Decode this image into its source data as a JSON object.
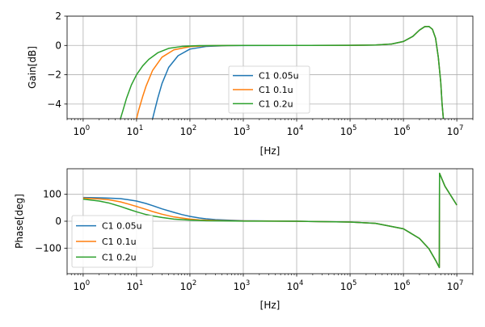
{
  "chart_data": [
    {
      "type": "line",
      "xscale": "log",
      "xlim": [
        0.5,
        20000000
      ],
      "ylim": [
        -5,
        2
      ],
      "ylabel": "Gain[dB]",
      "xlabel": "[Hz]",
      "grid": true,
      "legend_position": "center",
      "xticks": [
        {
          "value": 1,
          "base": "10",
          "exp": "0"
        },
        {
          "value": 10,
          "base": "10",
          "exp": "1"
        },
        {
          "value": 100,
          "base": "10",
          "exp": "2"
        },
        {
          "value": 1000,
          "base": "10",
          "exp": "3"
        },
        {
          "value": 10000,
          "base": "10",
          "exp": "4"
        },
        {
          "value": 100000,
          "base": "10",
          "exp": "5"
        },
        {
          "value": 1000000,
          "base": "10",
          "exp": "6"
        },
        {
          "value": 10000000,
          "base": "10",
          "exp": "7"
        }
      ],
      "yticks": [
        {
          "value": 2,
          "label": "2"
        },
        {
          "value": 0,
          "label": "0"
        },
        {
          "value": -2,
          "label": "−2"
        },
        {
          "value": -4,
          "label": "−4"
        }
      ],
      "series": [
        {
          "name": "C1 0.05u",
          "color": "#1f77b4",
          "x": [
            20,
            22,
            25,
            30,
            40,
            60,
            100,
            200,
            500,
            1000,
            10000,
            100000,
            300000,
            600000,
            1000000,
            1500000,
            2000000,
            2500000,
            3000000,
            3500000,
            4000000,
            4500000,
            5000000,
            5300000,
            5600000
          ],
          "y": [
            -5,
            -4.4,
            -3.6,
            -2.6,
            -1.5,
            -0.7,
            -0.25,
            -0.07,
            -0.012,
            -0.003,
            0,
            0.01,
            0.03,
            0.1,
            0.27,
            0.62,
            1.05,
            1.28,
            1.3,
            1.1,
            0.5,
            -0.8,
            -2.5,
            -4,
            -5
          ]
        },
        {
          "name": "C1 0.1u",
          "color": "#ff7f0e",
          "x": [
            10,
            11,
            13,
            15,
            20,
            30,
            50,
            100,
            200,
            500,
            1000,
            10000,
            100000,
            300000,
            600000,
            1000000,
            1500000,
            2000000,
            2500000,
            3000000,
            3500000,
            4000000,
            4500000,
            5000000,
            5300000,
            5600000
          ],
          "y": [
            -5,
            -4.4,
            -3.5,
            -2.8,
            -1.7,
            -0.8,
            -0.3,
            -0.08,
            -0.02,
            -0.003,
            0,
            0,
            0.01,
            0.03,
            0.1,
            0.27,
            0.62,
            1.05,
            1.28,
            1.3,
            1.1,
            0.5,
            -0.8,
            -2.5,
            -4,
            -5
          ]
        },
        {
          "name": "C1 0.2u",
          "color": "#2ca02c",
          "x": [
            5,
            5.5,
            6.5,
            8,
            10,
            13,
            17,
            25,
            40,
            70,
            150,
            400,
            1000,
            10000,
            100000,
            300000,
            600000,
            1000000,
            1500000,
            2000000,
            2500000,
            3000000,
            3500000,
            4000000,
            4500000,
            5000000,
            5300000,
            5600000
          ],
          "y": [
            -5,
            -4.5,
            -3.6,
            -2.7,
            -2,
            -1.4,
            -0.95,
            -0.5,
            -0.2,
            -0.07,
            -0.015,
            -0.002,
            0,
            0,
            0.01,
            0.03,
            0.1,
            0.27,
            0.62,
            1.05,
            1.28,
            1.3,
            1.1,
            0.5,
            -0.8,
            -2.5,
            -4,
            -5
          ]
        }
      ]
    },
    {
      "type": "line",
      "xscale": "log",
      "xlim": [
        0.5,
        20000000
      ],
      "ylim": [
        -195,
        195
      ],
      "ylabel": "Phase[deg]",
      "xlabel": "[Hz]",
      "grid": true,
      "legend_position": "lower-left",
      "xticks": [
        {
          "value": 1,
          "base": "10",
          "exp": "0"
        },
        {
          "value": 10,
          "base": "10",
          "exp": "1"
        },
        {
          "value": 100,
          "base": "10",
          "exp": "2"
        },
        {
          "value": 1000,
          "base": "10",
          "exp": "3"
        },
        {
          "value": 10000,
          "base": "10",
          "exp": "4"
        },
        {
          "value": 100000,
          "base": "10",
          "exp": "5"
        },
        {
          "value": 1000000,
          "base": "10",
          "exp": "6"
        },
        {
          "value": 10000000,
          "base": "10",
          "exp": "7"
        }
      ],
      "yticks": [
        {
          "value": 100,
          "label": "100"
        },
        {
          "value": 0,
          "label": "0"
        },
        {
          "value": -100,
          "label": "−100"
        }
      ],
      "series": [
        {
          "name": "C1 0.05u",
          "color": "#1f77b4",
          "x": [
            1,
            2,
            3,
            5,
            7,
            10,
            15,
            20,
            30,
            50,
            70,
            100,
            150,
            200,
            300,
            500,
            1000,
            10000,
            100000,
            300000,
            1000000,
            2000000,
            3000000,
            4000000,
            4700000,
            4750000,
            6000000,
            10000000
          ],
          "y": [
            88,
            87,
            86,
            84,
            80,
            75,
            66,
            58,
            46,
            33,
            25,
            18,
            12,
            9,
            6,
            4,
            2,
            0,
            -3,
            -8,
            -28,
            -64,
            -102,
            -145,
            -172,
            178,
            130,
            60
          ]
        },
        {
          "name": "C1 0.1u",
          "color": "#ff7f0e",
          "x": [
            1,
            2,
            3,
            5,
            7,
            10,
            15,
            20,
            30,
            50,
            70,
            100,
            150,
            200,
            300,
            500,
            1000,
            10000,
            100000,
            300000,
            1000000,
            2000000,
            3000000,
            4000000,
            4700000,
            4750000,
            6000000,
            10000000
          ],
          "y": [
            86,
            83,
            80,
            72,
            64,
            55,
            44,
            36,
            26,
            16,
            12,
            8,
            5,
            4,
            3,
            2,
            1,
            0,
            -3,
            -8,
            -28,
            -64,
            -102,
            -145,
            -172,
            178,
            130,
            60
          ]
        },
        {
          "name": "C1 0.2u",
          "color": "#2ca02c",
          "x": [
            1,
            2,
            3,
            5,
            7,
            10,
            15,
            20,
            30,
            50,
            70,
            100,
            150,
            200,
            300,
            500,
            1000,
            10000,
            100000,
            300000,
            1000000,
            2000000,
            3000000,
            4000000,
            4700000,
            4750000,
            6000000,
            10000000
          ],
          "y": [
            82,
            75,
            68,
            55,
            45,
            35,
            25,
            20,
            14,
            8,
            6,
            4,
            3,
            2,
            1.5,
            1,
            0.5,
            0,
            -3,
            -8,
            -28,
            -64,
            -102,
            -145,
            -172,
            178,
            130,
            60
          ]
        }
      ]
    }
  ]
}
